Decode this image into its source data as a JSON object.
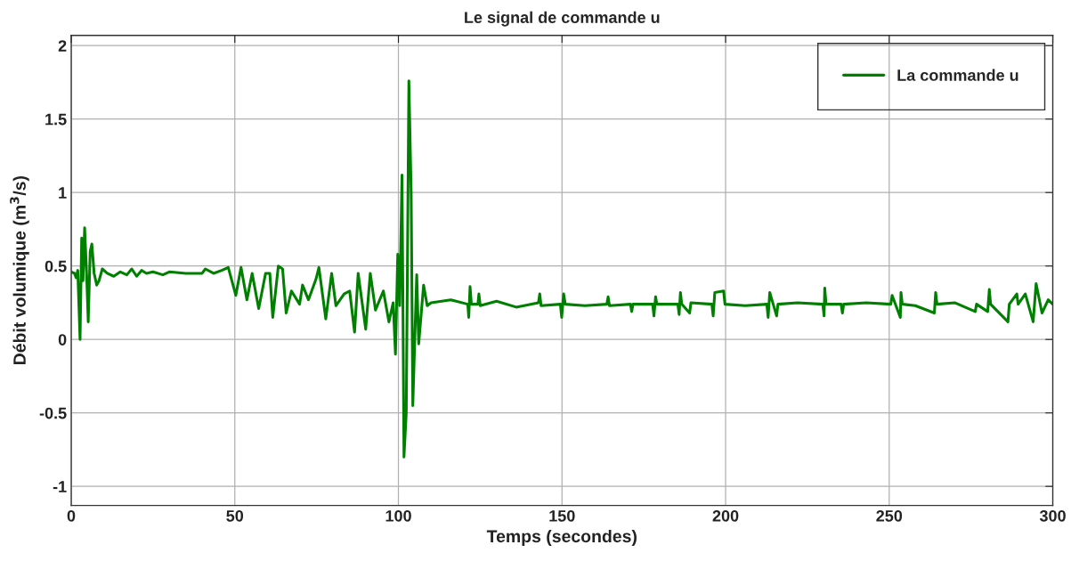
{
  "chart_data": {
    "type": "line",
    "title": "Le signal de commande u",
    "xlabel": "Temps (secondes)",
    "ylabel": "Débit volumique (m$^{3}$/s)",
    "series": [
      {
        "name": "La commande u",
        "color": "#008000",
        "x": [
          0,
          1,
          1.5,
          2,
          2.7,
          3.2,
          3.6,
          4.1,
          4.7,
          5.2,
          5.8,
          6.3,
          7,
          7.8,
          8.5,
          9.5,
          11,
          13,
          15,
          17,
          18.5,
          20,
          21.5,
          23,
          25,
          28,
          30,
          35,
          40,
          41,
          43.5,
          46,
          48,
          50.3,
          51.9,
          53.7,
          55.3,
          57.3,
          59.4,
          60.7,
          61.6,
          63.3,
          64.6,
          65.7,
          67.3,
          69.8,
          70.7,
          72.5,
          74.8,
          75.7,
          77.8,
          79.6,
          80.9,
          83.4,
          85.1,
          86.6,
          87.7,
          90,
          91.4,
          93,
          95.4,
          97.1,
          98.4,
          99.1,
          99.8,
          100.4,
          101.1,
          101.7,
          102.4,
          103.2,
          103.9,
          104.4,
          105.6,
          106.2,
          107.7,
          108.8,
          110,
          116,
          121.2,
          121.5,
          121.9,
          122.3,
          124.3,
          124.6,
          125,
          130,
          136,
          142.8,
          143.2,
          143.6,
          149.5,
          149.9,
          150.5,
          151,
          157,
          163.7,
          164.1,
          164.5,
          170.9,
          171.3,
          171.7,
          177.7,
          178.1,
          178.6,
          179,
          185.4,
          185.8,
          186.2,
          186.6,
          189,
          189.4,
          195.8,
          196.2,
          196.7,
          199.4,
          199.8,
          206,
          212.6,
          213,
          213.5,
          215.6,
          216,
          222,
          229.7,
          230.1,
          230.3,
          230.7,
          235.3,
          235.7,
          236.1,
          243,
          250.5,
          250.9,
          253.4,
          253.6,
          254,
          258,
          263.8,
          264.2,
          264.6,
          270,
          276.3,
          276.7,
          280.1,
          280.6,
          281,
          286.3,
          286.7,
          289,
          289.4,
          291.6,
          294,
          294.9,
          296.7,
          298.6,
          300
        ],
        "values": [
          0.46,
          0.45,
          0.42,
          0.47,
          0.0,
          0.69,
          0.4,
          0.76,
          0.45,
          0.12,
          0.6,
          0.65,
          0.45,
          0.37,
          0.4,
          0.48,
          0.45,
          0.43,
          0.46,
          0.44,
          0.48,
          0.43,
          0.47,
          0.45,
          0.46,
          0.44,
          0.46,
          0.45,
          0.45,
          0.48,
          0.45,
          0.47,
          0.49,
          0.3,
          0.49,
          0.27,
          0.45,
          0.21,
          0.45,
          0.45,
          0.15,
          0.5,
          0.48,
          0.18,
          0.33,
          0.24,
          0.37,
          0.27,
          0.41,
          0.49,
          0.14,
          0.45,
          0.23,
          0.31,
          0.33,
          0.05,
          0.45,
          0.07,
          0.45,
          0.2,
          0.33,
          0.12,
          0.25,
          -0.1,
          0.58,
          0.23,
          1.12,
          -0.8,
          -0.5,
          1.76,
          1.0,
          -0.45,
          0.44,
          -0.03,
          0.37,
          0.23,
          0.25,
          0.27,
          0.24,
          0.15,
          0.36,
          0.24,
          0.24,
          0.31,
          0.23,
          0.26,
          0.22,
          0.25,
          0.31,
          0.23,
          0.24,
          0.15,
          0.31,
          0.24,
          0.23,
          0.24,
          0.29,
          0.23,
          0.24,
          0.19,
          0.24,
          0.24,
          0.16,
          0.29,
          0.24,
          0.24,
          0.17,
          0.32,
          0.24,
          0.18,
          0.25,
          0.24,
          0.16,
          0.32,
          0.33,
          0.24,
          0.23,
          0.24,
          0.15,
          0.32,
          0.16,
          0.24,
          0.25,
          0.24,
          0.16,
          0.35,
          0.24,
          0.24,
          0.18,
          0.24,
          0.25,
          0.24,
          0.3,
          0.15,
          0.32,
          0.24,
          0.23,
          0.18,
          0.32,
          0.24,
          0.25,
          0.19,
          0.24,
          0.19,
          0.34,
          0.24,
          0.12,
          0.24,
          0.31,
          0.24,
          0.31,
          0.12,
          0.38,
          0.18,
          0.27,
          0.24
        ]
      }
    ],
    "xlim": [
      0,
      300
    ],
    "xticks": [
      0,
      50,
      100,
      150,
      200,
      250,
      300
    ],
    "ylim": [
      -1.13,
      2.07
    ],
    "yticks": [
      -1,
      -0.5,
      0,
      0.5,
      1,
      1.5,
      2
    ],
    "grid": true,
    "legend": "top right",
    "line_style": "solid",
    "marker": "none"
  }
}
